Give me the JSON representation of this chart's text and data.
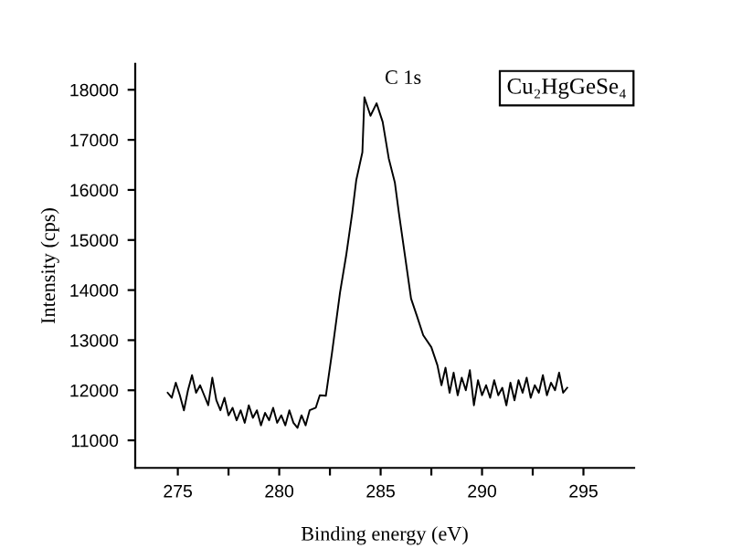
{
  "chart_data": {
    "type": "line",
    "xlabel": "Binding energy (eV)",
    "ylabel": "Intensity (cps)",
    "annotations": [
      "C 1s",
      "Cu₂HgGeSe₄"
    ],
    "x": [
      274.5,
      274.7,
      274.9,
      275.1,
      275.3,
      275.5,
      275.7,
      275.9,
      276.1,
      276.3,
      276.5,
      276.7,
      276.9,
      277.1,
      277.3,
      277.5,
      277.7,
      277.9,
      278.1,
      278.3,
      278.5,
      278.7,
      278.9,
      279.1,
      279.3,
      279.5,
      279.7,
      279.9,
      280.1,
      280.3,
      280.5,
      280.7,
      280.9,
      281.1,
      281.3,
      281.5,
      281.8,
      282.0,
      282.3,
      282.6,
      283.0,
      283.3,
      283.6,
      283.8,
      284.1,
      284.2,
      284.5,
      284.8,
      285.1,
      285.4,
      285.7,
      285.9,
      286.2,
      286.5,
      286.8,
      287.1,
      287.5,
      287.8,
      288.0,
      288.2,
      288.4,
      288.6,
      288.8,
      289.0,
      289.2,
      289.4,
      289.6,
      289.8,
      290.0,
      290.2,
      290.4,
      290.6,
      290.8,
      291.0,
      291.2,
      291.4,
      291.6,
      291.8,
      292.0,
      292.2,
      292.4,
      292.6,
      292.8,
      293.0,
      293.2,
      293.4,
      293.6,
      293.8,
      294.0,
      294.2
    ],
    "series": [
      {
        "color": "#000000",
        "values": [
          11950,
          11850,
          12150,
          11900,
          11600,
          12000,
          12300,
          11950,
          12100,
          11900,
          11700,
          12250,
          11800,
          11600,
          11850,
          11500,
          11650,
          11400,
          11600,
          11350,
          11700,
          11450,
          11600,
          11300,
          11550,
          11400,
          11650,
          11350,
          11500,
          11300,
          11600,
          11350,
          11250,
          11500,
          11300,
          11600,
          11650,
          11900,
          11890,
          12740,
          13960,
          14690,
          15540,
          16200,
          16750,
          17850,
          17480,
          17730,
          17360,
          16630,
          16150,
          15540,
          14690,
          13830,
          13470,
          13100,
          12860,
          12500,
          12100,
          12450,
          11950,
          12350,
          11900,
          12250,
          12000,
          12400,
          11700,
          12200,
          11900,
          12100,
          11850,
          12200,
          11900,
          12050,
          11700,
          12150,
          11800,
          12200,
          11950,
          12250,
          11850,
          12100,
          11950,
          12300,
          11900,
          12150,
          12000,
          12350,
          11950,
          12050
        ]
      }
    ],
    "xlim": [
      272.9,
      297.5
    ],
    "ylim": [
      10450,
      18520
    ],
    "xticks": [
      275,
      {
        "value": 277.5,
        "label": null
      },
      280,
      {
        "value": 282.5,
        "label": null
      },
      285,
      {
        "value": 287.5,
        "label": null
      },
      290,
      {
        "value": 292.5,
        "label": null
      },
      295
    ],
    "yticks": [
      11000,
      12000,
      13000,
      14000,
      15000,
      16000,
      17000,
      18000
    ],
    "grid": false,
    "legend": false,
    "marker": "none",
    "line_style": "solid"
  }
}
